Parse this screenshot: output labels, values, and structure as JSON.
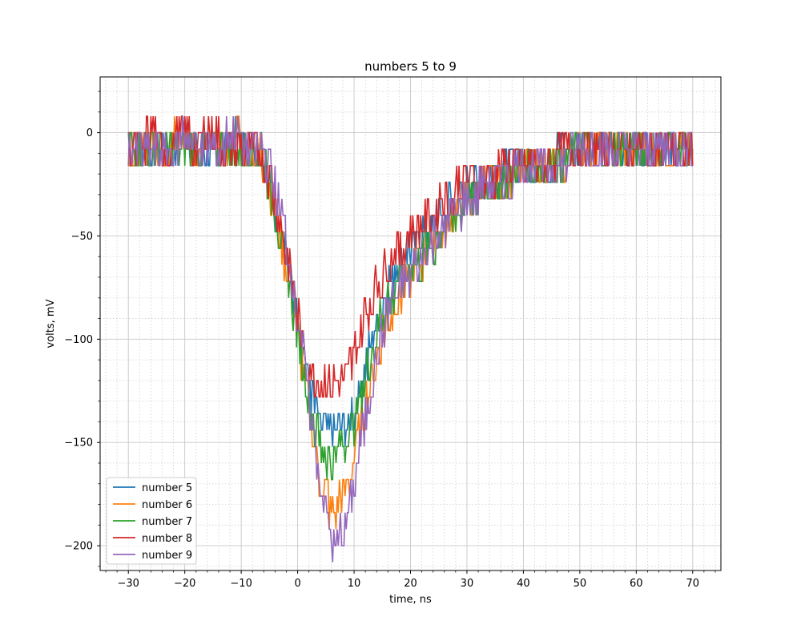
{
  "chart_data": {
    "type": "line",
    "title": "numbers 5 to 9",
    "xlabel": "time, ns",
    "ylabel": "volts, mV",
    "xlim": [
      -35,
      75
    ],
    "ylim": [
      -212,
      27
    ],
    "xticks": [
      -30,
      -20,
      -10,
      0,
      10,
      20,
      30,
      40,
      50,
      60,
      70
    ],
    "yticks": [
      0,
      -50,
      -100,
      -150,
      -200
    ],
    "xtick_labels": [
      "−30",
      "−20",
      "−10",
      "0",
      "10",
      "20",
      "30",
      "40",
      "50",
      "60",
      "70"
    ],
    "ytick_labels": [
      "0",
      "−50",
      "−100",
      "−150",
      "−200"
    ],
    "grid": {
      "major": true,
      "minor": true
    },
    "legend_position": "lower-left",
    "series": [
      {
        "name": "number 5",
        "color": "#1f77b4",
        "points": [
          [
            -30,
            -5
          ],
          [
            -28,
            -4
          ],
          [
            -26,
            -6
          ],
          [
            -24,
            -4
          ],
          [
            -22,
            -5
          ],
          [
            -20,
            -3
          ],
          [
            -18,
            -6
          ],
          [
            -16,
            -4
          ],
          [
            -14,
            -5
          ],
          [
            -12,
            -4
          ],
          [
            -10,
            -4
          ],
          [
            -8,
            -5
          ],
          [
            -7,
            -8
          ],
          [
            -6,
            -14
          ],
          [
            -5,
            -24
          ],
          [
            -4,
            -36
          ],
          [
            -3,
            -48
          ],
          [
            -2,
            -60
          ],
          [
            -1,
            -74
          ],
          [
            0,
            -88
          ],
          [
            1,
            -104
          ],
          [
            2,
            -120
          ],
          [
            3,
            -134
          ],
          [
            4,
            -144
          ],
          [
            6,
            -146
          ],
          [
            8,
            -146
          ],
          [
            9,
            -142
          ],
          [
            10,
            -134
          ],
          [
            11,
            -124
          ],
          [
            12,
            -112
          ],
          [
            13,
            -102
          ],
          [
            14,
            -92
          ],
          [
            15,
            -84
          ],
          [
            16,
            -74
          ],
          [
            18,
            -63
          ],
          [
            20,
            -56
          ],
          [
            22,
            -50
          ],
          [
            24,
            -45
          ],
          [
            26,
            -38
          ],
          [
            28,
            -32
          ],
          [
            30,
            -27
          ],
          [
            32,
            -24
          ],
          [
            34,
            -22
          ],
          [
            36,
            -20
          ],
          [
            38,
            -19
          ],
          [
            40,
            -18
          ],
          [
            42,
            -16
          ],
          [
            44,
            -14
          ],
          [
            46,
            -12
          ],
          [
            48,
            -10
          ],
          [
            50,
            -10
          ],
          [
            52,
            -9
          ],
          [
            54,
            -8
          ],
          [
            56,
            -8
          ],
          [
            58,
            -7
          ],
          [
            60,
            -7
          ],
          [
            62,
            -7
          ],
          [
            64,
            -6
          ],
          [
            66,
            -6
          ],
          [
            68,
            -6
          ],
          [
            70,
            -6
          ]
        ]
      },
      {
        "name": "number 6",
        "color": "#ff7f0e",
        "points": [
          [
            -30,
            -6
          ],
          [
            -28,
            -5
          ],
          [
            -26,
            -4
          ],
          [
            -24,
            -6
          ],
          [
            -22,
            -3
          ],
          [
            -20,
            -4
          ],
          [
            -18,
            -5
          ],
          [
            -16,
            -4
          ],
          [
            -14,
            -5
          ],
          [
            -12,
            -4
          ],
          [
            -10,
            -4
          ],
          [
            -8,
            -6
          ],
          [
            -7,
            -9
          ],
          [
            -6,
            -16
          ],
          [
            -5,
            -26
          ],
          [
            -4,
            -38
          ],
          [
            -3,
            -52
          ],
          [
            -2,
            -66
          ],
          [
            -1,
            -82
          ],
          [
            0,
            -98
          ],
          [
            1,
            -116
          ],
          [
            2,
            -134
          ],
          [
            3,
            -152
          ],
          [
            4,
            -168
          ],
          [
            5,
            -178
          ],
          [
            6,
            -182
          ],
          [
            7,
            -180
          ],
          [
            8,
            -176
          ],
          [
            9,
            -170
          ],
          [
            10,
            -156
          ],
          [
            11,
            -144
          ],
          [
            12,
            -132
          ],
          [
            13,
            -120
          ],
          [
            14,
            -108
          ],
          [
            15,
            -98
          ],
          [
            16,
            -88
          ],
          [
            18,
            -78
          ],
          [
            20,
            -70
          ],
          [
            22,
            -61
          ],
          [
            24,
            -53
          ],
          [
            26,
            -46
          ],
          [
            28,
            -40
          ],
          [
            30,
            -33
          ],
          [
            32,
            -28
          ],
          [
            34,
            -25
          ],
          [
            36,
            -22
          ],
          [
            38,
            -20
          ],
          [
            40,
            -18
          ],
          [
            42,
            -16
          ],
          [
            44,
            -14
          ],
          [
            46,
            -13
          ],
          [
            48,
            -12
          ],
          [
            50,
            -11
          ],
          [
            52,
            -10
          ],
          [
            54,
            -9
          ],
          [
            56,
            -8
          ],
          [
            58,
            -8
          ],
          [
            60,
            -7
          ],
          [
            62,
            -7
          ],
          [
            64,
            -7
          ],
          [
            66,
            -6
          ],
          [
            68,
            -6
          ],
          [
            70,
            -6
          ]
        ]
      },
      {
        "name": "number 7",
        "color": "#2ca02c",
        "points": [
          [
            -30,
            -5
          ],
          [
            -28,
            -6
          ],
          [
            -26,
            -4
          ],
          [
            -24,
            -5
          ],
          [
            -22,
            -4
          ],
          [
            -20,
            -6
          ],
          [
            -18,
            -4
          ],
          [
            -16,
            -5
          ],
          [
            -14,
            -4
          ],
          [
            -12,
            -5
          ],
          [
            -10,
            -4
          ],
          [
            -8,
            -6
          ],
          [
            -7,
            -10
          ],
          [
            -6,
            -16
          ],
          [
            -5,
            -26
          ],
          [
            -4,
            -38
          ],
          [
            -3,
            -52
          ],
          [
            -2,
            -66
          ],
          [
            -1,
            -82
          ],
          [
            0,
            -98
          ],
          [
            1,
            -114
          ],
          [
            2,
            -130
          ],
          [
            3,
            -142
          ],
          [
            4,
            -150
          ],
          [
            5,
            -156
          ],
          [
            6,
            -158
          ],
          [
            7,
            -156
          ],
          [
            8,
            -152
          ],
          [
            9,
            -146
          ],
          [
            10,
            -140
          ],
          [
            11,
            -130
          ],
          [
            12,
            -118
          ],
          [
            13,
            -106
          ],
          [
            14,
            -96
          ],
          [
            15,
            -88
          ],
          [
            16,
            -80
          ],
          [
            18,
            -74
          ],
          [
            20,
            -66
          ],
          [
            22,
            -60
          ],
          [
            24,
            -54
          ],
          [
            26,
            -46
          ],
          [
            28,
            -40
          ],
          [
            30,
            -33
          ],
          [
            32,
            -28
          ],
          [
            34,
            -25
          ],
          [
            36,
            -22
          ],
          [
            38,
            -20
          ],
          [
            40,
            -18
          ],
          [
            42,
            -16
          ],
          [
            44,
            -14
          ],
          [
            46,
            -13
          ],
          [
            48,
            -12
          ],
          [
            50,
            -11
          ],
          [
            52,
            -10
          ],
          [
            54,
            -9
          ],
          [
            56,
            -8
          ],
          [
            58,
            -8
          ],
          [
            60,
            -7
          ],
          [
            62,
            -7
          ],
          [
            64,
            -7
          ],
          [
            66,
            -6
          ],
          [
            68,
            -6
          ],
          [
            70,
            -6
          ]
        ]
      },
      {
        "name": "number 8",
        "color": "#d62728",
        "points": [
          [
            -30,
            -4
          ],
          [
            -28,
            -5
          ],
          [
            -26,
            -3
          ],
          [
            -24,
            -5
          ],
          [
            -22,
            -4
          ],
          [
            -20,
            -3
          ],
          [
            -18,
            -5
          ],
          [
            -16,
            -2
          ],
          [
            -14,
            -4
          ],
          [
            -12,
            -5
          ],
          [
            -10,
            -4
          ],
          [
            -8,
            -6
          ],
          [
            -7,
            -9
          ],
          [
            -6,
            -14
          ],
          [
            -5,
            -22
          ],
          [
            -4,
            -32
          ],
          [
            -3,
            -44
          ],
          [
            -2,
            -58
          ],
          [
            -1,
            -72
          ],
          [
            0,
            -88
          ],
          [
            1,
            -104
          ],
          [
            2,
            -114
          ],
          [
            3,
            -118
          ],
          [
            4,
            -120
          ],
          [
            6,
            -122
          ],
          [
            8,
            -120
          ],
          [
            9,
            -116
          ],
          [
            10,
            -108
          ],
          [
            11,
            -98
          ],
          [
            12,
            -90
          ],
          [
            13,
            -82
          ],
          [
            14,
            -74
          ],
          [
            15,
            -68
          ],
          [
            16,
            -62
          ],
          [
            18,
            -56
          ],
          [
            20,
            -50
          ],
          [
            22,
            -44
          ],
          [
            24,
            -38
          ],
          [
            26,
            -33
          ],
          [
            28,
            -28
          ],
          [
            30,
            -25
          ],
          [
            32,
            -23
          ],
          [
            34,
            -21
          ],
          [
            36,
            -19
          ],
          [
            38,
            -18
          ],
          [
            40,
            -16
          ],
          [
            42,
            -15
          ],
          [
            44,
            -13
          ],
          [
            46,
            -12
          ],
          [
            48,
            -11
          ],
          [
            50,
            -10
          ],
          [
            52,
            -9
          ],
          [
            54,
            -8
          ],
          [
            56,
            -8
          ],
          [
            58,
            -7
          ],
          [
            60,
            -7
          ],
          [
            62,
            -7
          ],
          [
            64,
            -6
          ],
          [
            66,
            -6
          ],
          [
            68,
            -6
          ],
          [
            70,
            -6
          ]
        ]
      },
      {
        "name": "number 9",
        "color": "#9467bd",
        "points": [
          [
            -30,
            -8
          ],
          [
            -28,
            -4
          ],
          [
            -26,
            -5
          ],
          [
            -24,
            -4
          ],
          [
            -22,
            -6
          ],
          [
            -20,
            -3
          ],
          [
            -18,
            -5
          ],
          [
            -16,
            -4
          ],
          [
            -14,
            -5
          ],
          [
            -12,
            -3
          ],
          [
            -10,
            -4
          ],
          [
            -8,
            -5
          ],
          [
            -7,
            -6
          ],
          [
            -6,
            -10
          ],
          [
            -5,
            -18
          ],
          [
            -4,
            -28
          ],
          [
            -3,
            -40
          ],
          [
            -2,
            -54
          ],
          [
            -1,
            -70
          ],
          [
            0,
            -88
          ],
          [
            1,
            -108
          ],
          [
            2,
            -130
          ],
          [
            3,
            -150
          ],
          [
            4,
            -168
          ],
          [
            5,
            -184
          ],
          [
            6,
            -196
          ],
          [
            7,
            -198
          ],
          [
            8,
            -194
          ],
          [
            9,
            -184
          ],
          [
            10,
            -170
          ],
          [
            11,
            -154
          ],
          [
            12,
            -138
          ],
          [
            13,
            -122
          ],
          [
            14,
            -108
          ],
          [
            15,
            -96
          ],
          [
            16,
            -86
          ],
          [
            18,
            -76
          ],
          [
            20,
            -68
          ],
          [
            22,
            -60
          ],
          [
            24,
            -52
          ],
          [
            26,
            -45
          ],
          [
            28,
            -39
          ],
          [
            30,
            -33
          ],
          [
            32,
            -28
          ],
          [
            34,
            -25
          ],
          [
            36,
            -22
          ],
          [
            38,
            -20
          ],
          [
            40,
            -18
          ],
          [
            42,
            -16
          ],
          [
            44,
            -14
          ],
          [
            46,
            -13
          ],
          [
            48,
            -12
          ],
          [
            50,
            -11
          ],
          [
            52,
            -10
          ],
          [
            54,
            -9
          ],
          [
            56,
            -8
          ],
          [
            58,
            -8
          ],
          [
            60,
            -7
          ],
          [
            62,
            -7
          ],
          [
            64,
            -7
          ],
          [
            66,
            -6
          ],
          [
            68,
            -6
          ],
          [
            70,
            -6
          ]
        ]
      }
    ]
  }
}
